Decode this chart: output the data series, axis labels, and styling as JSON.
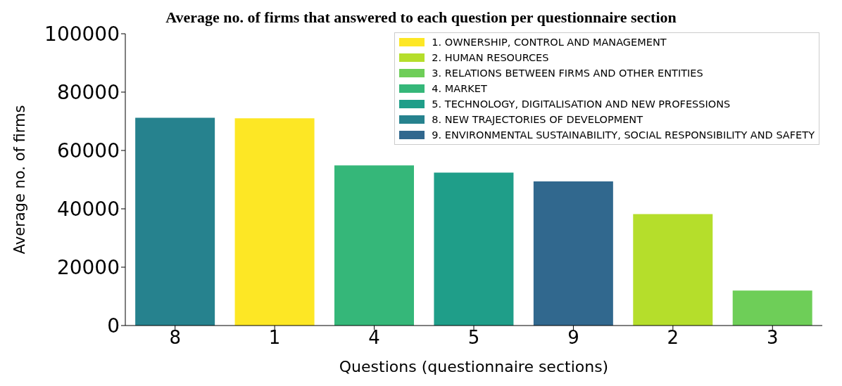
{
  "chart_data": {
    "type": "bar",
    "title": "Average no. of firms that answered to each question per questionnaire section",
    "xlabel": "Questions (questionnaire sections)",
    "ylabel": "Average no. of firms",
    "categories": [
      "8",
      "1",
      "4",
      "5",
      "9",
      "2",
      "3"
    ],
    "stacked": true,
    "series": [
      {
        "name": "1. OWNERSHIP, CONTROL AND MANAGEMENT",
        "color": "#fde725",
        "values": [
          null,
          71000,
          null,
          null,
          null,
          null,
          null
        ]
      },
      {
        "name": "2. HUMAN RESOURCES",
        "color": "#b5de2b",
        "values": [
          null,
          null,
          null,
          null,
          null,
          38200,
          null
        ]
      },
      {
        "name": "3. RELATIONS BETWEEN FIRMS AND OTHER ENTITIES",
        "color": "#6ece58",
        "values": [
          null,
          null,
          null,
          null,
          null,
          null,
          12000
        ]
      },
      {
        "name": "4. MARKET",
        "color": "#35b779",
        "values": [
          null,
          null,
          54900,
          null,
          null,
          null,
          null
        ]
      },
      {
        "name": "5. TECHNOLOGY, DIGITALISATION AND NEW PROFESSIONS",
        "color": "#1f9e89",
        "values": [
          null,
          null,
          null,
          52400,
          null,
          null,
          null
        ]
      },
      {
        "name": "8. NEW TRAJECTORIES OF DEVELOPMENT",
        "color": "#26828e",
        "values": [
          71200,
          null,
          null,
          null,
          null,
          null,
          null
        ]
      },
      {
        "name": "9. ENVIRONMENTAL SUSTAINABILITY, SOCIAL RESPONSIBILITY AND SAFETY",
        "color": "#31688e",
        "values": [
          null,
          null,
          null,
          null,
          49400,
          null,
          null
        ]
      }
    ],
    "ylim": [
      0,
      100000
    ],
    "yticks": [
      0,
      20000,
      40000,
      60000,
      80000,
      100000
    ],
    "grid": false,
    "legend": "top right"
  }
}
